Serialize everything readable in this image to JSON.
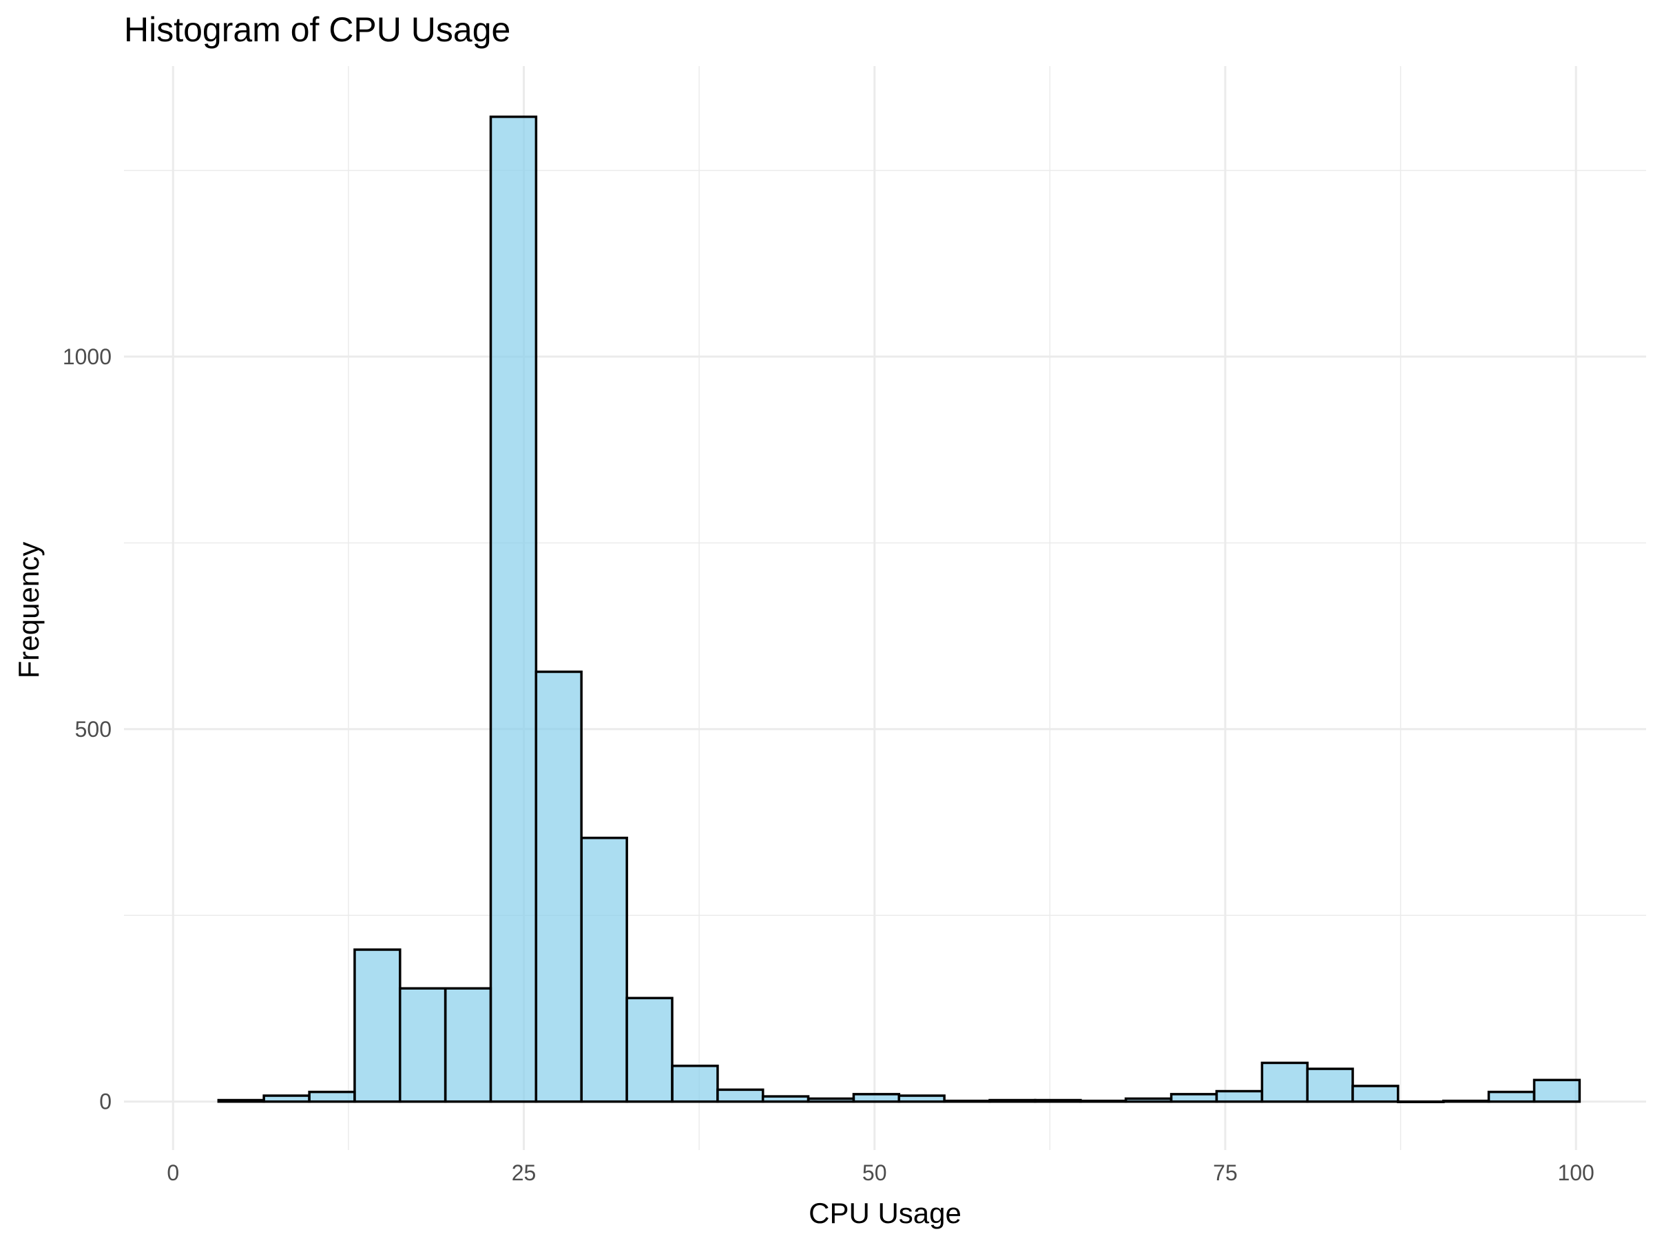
{
  "chart_data": {
    "type": "bar",
    "title": "Histogram of CPU Usage",
    "xlabel": "CPU Usage",
    "ylabel": "Frequency",
    "xlim": [
      -3.5,
      105
    ],
    "ylim": [
      -65,
      1390
    ],
    "x_ticks": [
      0,
      25,
      50,
      75,
      100
    ],
    "x_tick_labels": [
      "0",
      "25",
      "50",
      "75",
      "100"
    ],
    "x_minor_ticks": [
      12.5,
      37.5,
      62.5,
      87.5
    ],
    "y_ticks": [
      0,
      500,
      1000
    ],
    "y_tick_labels": [
      "0",
      "500",
      "1000"
    ],
    "y_minor_ticks": [
      250,
      750,
      1250
    ],
    "grid": true,
    "legend": "none",
    "bar_fill": "#87ceeb",
    "bar_fill_opacity": 0.7,
    "bar_outline": "#000000",
    "bin_width": 3.234,
    "bin_centers": [
      4.86,
      8.09,
      11.33,
      14.56,
      17.79,
      21.03,
      24.26,
      27.49,
      30.73,
      33.96,
      37.2,
      40.43,
      43.66,
      46.9,
      50.13,
      53.36,
      56.6,
      59.83,
      63.07,
      66.3,
      69.53,
      72.77,
      76.0,
      79.24,
      82.47,
      85.7,
      88.94,
      92.17,
      95.4,
      98.64
    ],
    "values": [
      2,
      8,
      13,
      204,
      152,
      152,
      1322,
      577,
      354,
      139,
      48,
      16,
      7,
      4,
      10,
      8,
      1,
      2,
      2,
      1,
      4,
      10,
      14,
      52,
      44,
      21,
      0,
      1,
      13,
      29
    ]
  }
}
